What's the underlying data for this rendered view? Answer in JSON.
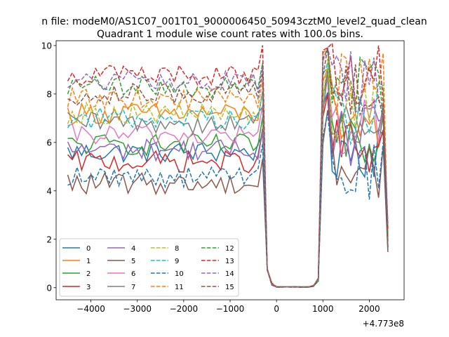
{
  "chart_data": {
    "type": "line",
    "suptitle": "n file: modeM0/AS1C07_001T01_9000006450_50943cztM0_level2_quad_clean",
    "title": "Quadrant 1 module wise count rates with 100.0s bins.",
    "xlabel": "",
    "ylabel": "",
    "x_offset_label": "+4.773e8",
    "xlim": [
      -4750,
      2750
    ],
    "ylim": [
      -0.5,
      10.2
    ],
    "xticks": [
      -4000,
      -3000,
      -2000,
      -1000,
      0,
      1000,
      2000
    ],
    "xtick_labels": [
      "−4000",
      "−3000",
      "−2000",
      "−1000",
      "0",
      "1000",
      "2000"
    ],
    "yticks": [
      0,
      2,
      4,
      6,
      8,
      10
    ],
    "ytick_labels": [
      "0",
      "2",
      "4",
      "6",
      "8",
      "10"
    ],
    "x": [
      -4500,
      -4400,
      -4300,
      -4200,
      -4100,
      -4000,
      -3900,
      -3800,
      -3700,
      -3600,
      -3500,
      -3400,
      -3300,
      -3200,
      -3100,
      -3000,
      -2900,
      -2800,
      -2700,
      -2600,
      -2500,
      -2400,
      -2300,
      -2200,
      -2100,
      -2000,
      -1900,
      -1800,
      -1700,
      -1600,
      -1500,
      -1400,
      -1300,
      -1200,
      -1100,
      -1000,
      -900,
      -800,
      -700,
      -600,
      -500,
      -400,
      -300,
      -200,
      -100,
      0,
      100,
      200,
      300,
      400,
      500,
      600,
      700,
      800,
      900,
      1000,
      1100,
      1200,
      1300,
      1400,
      1500,
      1600,
      1700,
      1800,
      1900,
      2000,
      2100,
      2200,
      2300,
      2400
    ],
    "grid": false,
    "legend_position": "lower-left",
    "legend_columns": 4,
    "series": [
      {
        "name": "0",
        "color": "#1f77b4",
        "linestyle": "solid",
        "level": 5.6,
        "gap_level": 5.8
      },
      {
        "name": "1",
        "color": "#ff7f0e",
        "linestyle": "solid",
        "level": 7.2,
        "gap_level": 7.0
      },
      {
        "name": "2",
        "color": "#2ca02c",
        "linestyle": "solid",
        "level": 5.9,
        "gap_level": 6.5
      },
      {
        "name": "3",
        "color": "#d62728",
        "linestyle": "solid",
        "level": 5.2,
        "gap_level": 5.8
      },
      {
        "name": "4",
        "color": "#9467bd",
        "linestyle": "solid",
        "level": 5.7,
        "gap_level": 6.2
      },
      {
        "name": "5",
        "color": "#8c564b",
        "linestyle": "solid",
        "level": 4.3,
        "gap_level": 5.0
      },
      {
        "name": "6",
        "color": "#e377c2",
        "linestyle": "solid",
        "level": 6.3,
        "gap_level": 6.6
      },
      {
        "name": "7",
        "color": "#7f7f7f",
        "linestyle": "solid",
        "level": 6.8,
        "gap_level": 6.5
      },
      {
        "name": "8",
        "color": "#bcbd22",
        "linestyle": "dashed",
        "level": 7.2,
        "gap_level": 7.2
      },
      {
        "name": "9",
        "color": "#17becf",
        "linestyle": "dashed",
        "level": 7.0,
        "gap_level": 7.2
      },
      {
        "name": "10",
        "color": "#1f77b4",
        "linestyle": "dashed",
        "level": 4.6,
        "gap_level": 4.8
      },
      {
        "name": "11",
        "color": "#ff7f0e",
        "linestyle": "dashed",
        "level": 7.8,
        "gap_level": 8.4
      },
      {
        "name": "12",
        "color": "#2ca02c",
        "linestyle": "dashed",
        "level": 8.3,
        "gap_level": 8.3
      },
      {
        "name": "13",
        "color": "#d62728",
        "linestyle": "dashed",
        "level": 8.8,
        "gap_level": 8.8
      },
      {
        "name": "14",
        "color": "#9467bd",
        "linestyle": "dashed",
        "level": 8.5,
        "gap_level": 8.5
      },
      {
        "name": "15",
        "color": "#8c564b",
        "linestyle": "dashed",
        "level": 8.0,
        "gap_level": 8.0
      }
    ]
  }
}
